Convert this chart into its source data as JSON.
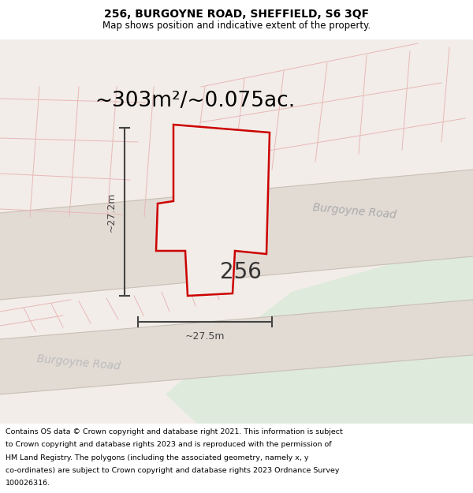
{
  "title_line1": "256, BURGOYNE ROAD, SHEFFIELD, S6 3QF",
  "title_line2": "Map shows position and indicative extent of the property.",
  "area_text": "~303m²/~0.075ac.",
  "label_256": "256",
  "label_height": "~27.2m",
  "label_width": "~27.5m",
  "road_label1": "Burgoyne Road",
  "road_label2": "Burgoyne Road",
  "footer_lines": [
    "Contains OS data © Crown copyright and database right 2021. This information is subject",
    "to Crown copyright and database rights 2023 and is reproduced with the permission of",
    "HM Land Registry. The polygons (including the associated geometry, namely x, y",
    "co-ordinates) are subject to Crown copyright and database rights 2023 Ordnance Survey",
    "100026316."
  ],
  "bg_color": "#f2ede8",
  "road_fill": "#e2dbd4",
  "road_edge_color": "#c8bfb5",
  "green_color": "#deeadc",
  "property_outline": "#cc0000",
  "property_fill": "#f2ede8",
  "faint_line_color": "#e8b8b8",
  "dim_color": "#444444",
  "road_text_color": "#aaaaaa",
  "title_fontsize": 10,
  "subtitle_fontsize": 8.5,
  "area_fontsize": 19,
  "label_fontsize": 20,
  "dim_fontsize": 9,
  "road_label_fontsize": 10,
  "footer_fontsize": 6.8
}
